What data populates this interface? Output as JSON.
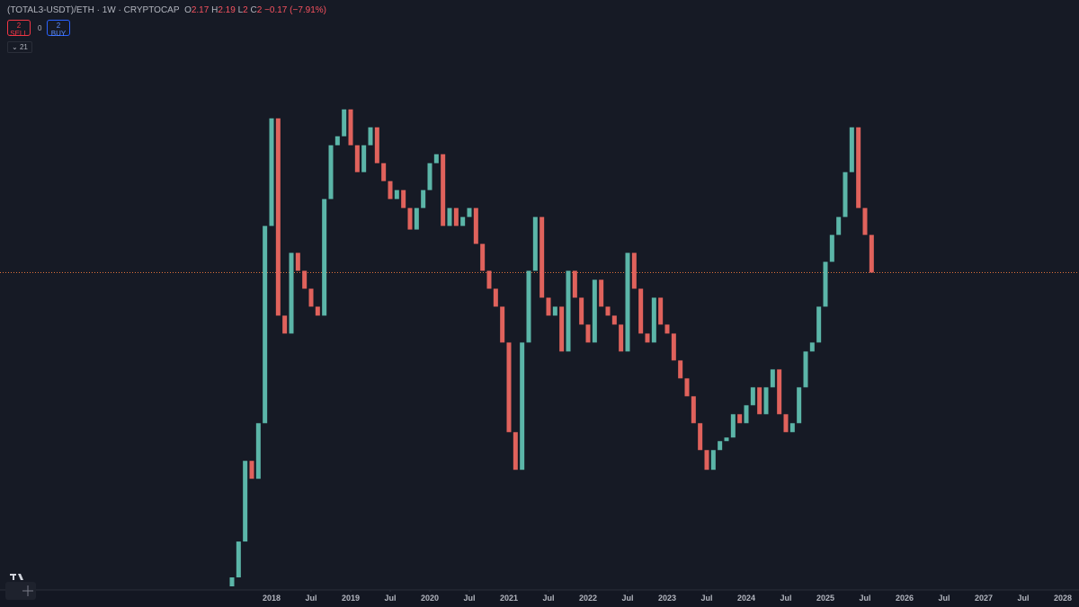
{
  "header": {
    "symbol": "(TOTAL3-USDT)/ETH · 1W · CRYPTOCAP",
    "o_label": "O",
    "o": 2.17,
    "h_label": "H",
    "h": 2.19,
    "l_label": "L",
    "l": 2,
    "c_label": "C",
    "c": 2,
    "change": "−0.17 (−7.91%)"
  },
  "trade": {
    "sell_qty": 2,
    "sell": "SELL",
    "spread": 0,
    "buy_qty": 2,
    "buy": "BUY"
  },
  "indicators": "21",
  "chart_data": {
    "type": "candlestick",
    "up_color": "#5bb5a8",
    "down_color": "#e0625c",
    "price_line": 2,
    "price_line_color": "#e0703a",
    "x": [
      "2017-07",
      "2017-08",
      "2017-09",
      "2017-10",
      "2017-11",
      "2017-12",
      "2018-01",
      "2018-02",
      "2018-03",
      "2018-04",
      "2018-05",
      "2018-06",
      "2018-07",
      "2018-08",
      "2018-09",
      "2018-10",
      "2018-11",
      "2018-12",
      "2019-01",
      "2019-02",
      "2019-03",
      "2019-04",
      "2019-05",
      "2019-06",
      "2019-07",
      "2019-08",
      "2019-09",
      "2019-10",
      "2019-11",
      "2019-12",
      "2020-01",
      "2020-02",
      "2020-03",
      "2020-04",
      "2020-05",
      "2020-06",
      "2020-07",
      "2020-08",
      "2020-09",
      "2020-10",
      "2020-11",
      "2020-12",
      "2021-01",
      "2021-02",
      "2021-03",
      "2021-04",
      "2021-05",
      "2021-06",
      "2021-07",
      "2021-08",
      "2021-09",
      "2021-10",
      "2021-11",
      "2021-12",
      "2022-01",
      "2022-02",
      "2022-03",
      "2022-04",
      "2022-05",
      "2022-06",
      "2022-07",
      "2022-08",
      "2022-09",
      "2022-10",
      "2022-11",
      "2022-12",
      "2023-01",
      "2023-02",
      "2023-03",
      "2023-04",
      "2023-05",
      "2023-06",
      "2023-07",
      "2023-08",
      "2023-09",
      "2023-10",
      "2023-11",
      "2023-12",
      "2024-01",
      "2024-02",
      "2024-03",
      "2024-04",
      "2024-05",
      "2024-06",
      "2024-07",
      "2024-08",
      "2024-09",
      "2024-10",
      "2024-11",
      "2024-12",
      "2025-01",
      "2025-02",
      "2025-03",
      "2025-04",
      "2025-05",
      "2025-06",
      "2025-07",
      "2025-08"
    ],
    "open": [
      0.25,
      0.3,
      0.5,
      0.95,
      0.85,
      1.16,
      2.26,
      2.86,
      1.76,
      1.66,
      2.11,
      2.01,
      1.91,
      1.81,
      1.76,
      2.41,
      2.71,
      2.76,
      2.91,
      2.71,
      2.56,
      2.71,
      2.81,
      2.61,
      2.51,
      2.41,
      2.46,
      2.36,
      2.24,
      2.36,
      2.46,
      2.61,
      2.66,
      2.26,
      2.36,
      2.26,
      2.31,
      2.36,
      2.16,
      2.01,
      1.91,
      1.81,
      1.61,
      1.11,
      0.9,
      1.61,
      2.01,
      2.31,
      1.86,
      1.76,
      1.81,
      1.56,
      2.01,
      1.86,
      1.71,
      1.61,
      1.96,
      1.81,
      1.76,
      1.71,
      1.56,
      2.11,
      1.91,
      1.66,
      1.61,
      1.86,
      1.71,
      1.66,
      1.51,
      1.41,
      1.31,
      1.16,
      1.01,
      0.9,
      1.01,
      1.06,
      1.08,
      1.21,
      1.16,
      1.26,
      1.36,
      1.21,
      1.36,
      1.46,
      1.21,
      1.11,
      1.16,
      1.36,
      1.56,
      1.61,
      1.81,
      2.06,
      2.21,
      2.31,
      2.56,
      2.81,
      2.36,
      2.21
    ],
    "close": [
      0.3,
      0.5,
      0.95,
      0.85,
      1.16,
      2.26,
      2.86,
      1.76,
      1.66,
      2.11,
      2.01,
      1.91,
      1.81,
      1.76,
      2.41,
      2.71,
      2.76,
      2.91,
      2.71,
      2.56,
      2.71,
      2.81,
      2.61,
      2.51,
      2.41,
      2.46,
      2.36,
      2.24,
      2.36,
      2.46,
      2.61,
      2.66,
      2.26,
      2.36,
      2.26,
      2.31,
      2.36,
      2.16,
      2.01,
      1.91,
      1.81,
      1.61,
      1.11,
      0.9,
      1.61,
      2.01,
      2.31,
      1.86,
      1.76,
      1.81,
      1.56,
      2.01,
      1.86,
      1.71,
      1.61,
      1.96,
      1.81,
      1.76,
      1.71,
      1.56,
      2.11,
      1.91,
      1.66,
      1.61,
      1.86,
      1.71,
      1.66,
      1.51,
      1.41,
      1.31,
      1.16,
      1.01,
      0.9,
      1.01,
      1.06,
      1.08,
      1.21,
      1.16,
      1.26,
      1.36,
      1.21,
      1.36,
      1.46,
      1.21,
      1.11,
      1.16,
      1.36,
      1.56,
      1.61,
      1.81,
      2.06,
      2.21,
      2.31,
      2.56,
      2.81,
      2.36,
      2.21,
      2.0
    ],
    "ylim": [
      0.23,
      3.52
    ],
    "xlim": [
      "2015-01",
      "2028-07"
    ],
    "xticks": [
      {
        "value": "2018-01",
        "label": "2018"
      },
      {
        "value": "2018-07",
        "label": "Jul"
      },
      {
        "value": "2019-01",
        "label": "2019"
      },
      {
        "value": "2019-07",
        "label": "Jul"
      },
      {
        "value": "2020-01",
        "label": "2020"
      },
      {
        "value": "2020-07",
        "label": "Jul"
      },
      {
        "value": "2021-01",
        "label": "2021"
      },
      {
        "value": "2021-07",
        "label": "Jul"
      },
      {
        "value": "2022-01",
        "label": "2022"
      },
      {
        "value": "2022-07",
        "label": "Jul"
      },
      {
        "value": "2023-01",
        "label": "2023"
      },
      {
        "value": "2023-07",
        "label": "Jul"
      },
      {
        "value": "2024-01",
        "label": "2024"
      },
      {
        "value": "2024-07",
        "label": "Jul"
      },
      {
        "value": "2025-01",
        "label": "2025"
      },
      {
        "value": "2025-07",
        "label": "Jul"
      },
      {
        "value": "2026-01",
        "label": "2026"
      },
      {
        "value": "2026-07",
        "label": "Jul"
      },
      {
        "value": "2027-01",
        "label": "2027"
      },
      {
        "value": "2027-07",
        "label": "Jul"
      },
      {
        "value": "2028-01",
        "label": "2028"
      }
    ]
  }
}
